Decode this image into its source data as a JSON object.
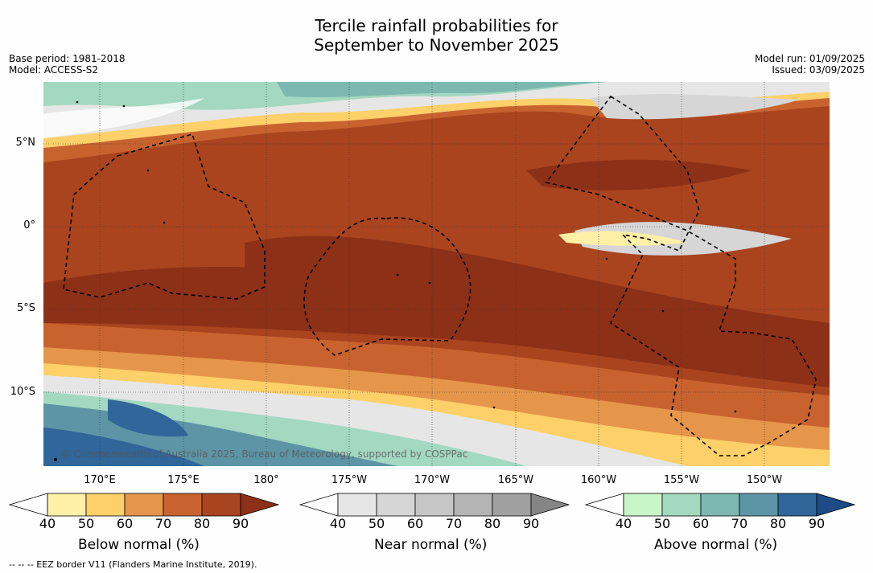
{
  "title": {
    "line1": "Tercile rainfall probabilities for",
    "line2": "September to November 2025"
  },
  "meta": {
    "base_period": "Base period: 1981-2018",
    "model": "Model: ACCESS-S2",
    "model_run": "Model run: 01/09/2025",
    "issued": "Issued: 03/09/2025"
  },
  "map": {
    "lat_labels": [
      "5°N",
      "0°",
      "5°S",
      "10°S"
    ],
    "lon_labels": [
      "170°E",
      "175°E",
      "180°",
      "175°W",
      "170°W",
      "165°W",
      "160°W",
      "155°W",
      "150°W"
    ],
    "copyright": "© Commonwealth of Australia 2025, Bureau of Meteorology, supported by COSPPac"
  },
  "colorbars": [
    {
      "label": "Below normal (%)",
      "ticks": [
        "40",
        "50",
        "60",
        "70",
        "80",
        "90"
      ],
      "colors": [
        "#ffffff",
        "#fff0a8",
        "#fdd06a",
        "#e6964a",
        "#c8632f",
        "#a94420",
        "#8d3018"
      ]
    },
    {
      "label": "Near normal (%)",
      "ticks": [
        "40",
        "50",
        "60",
        "70",
        "80",
        "90"
      ],
      "colors": [
        "#ffffff",
        "#e6e6e6",
        "#d6d6d6",
        "#c6c6c6",
        "#b4b4b4",
        "#a0a0a0",
        "#858585"
      ]
    },
    {
      "label": "Above normal (%)",
      "ticks": [
        "40",
        "50",
        "60",
        "70",
        "80",
        "90"
      ],
      "colors": [
        "#ffffff",
        "#c9f6c8",
        "#a3d8c1",
        "#7db8b0",
        "#5d95a6",
        "#306699",
        "#1c4b86"
      ]
    }
  ],
  "footer": "--  --  -- EEZ border V11 (Flanders Marine Institute, 2019)."
}
